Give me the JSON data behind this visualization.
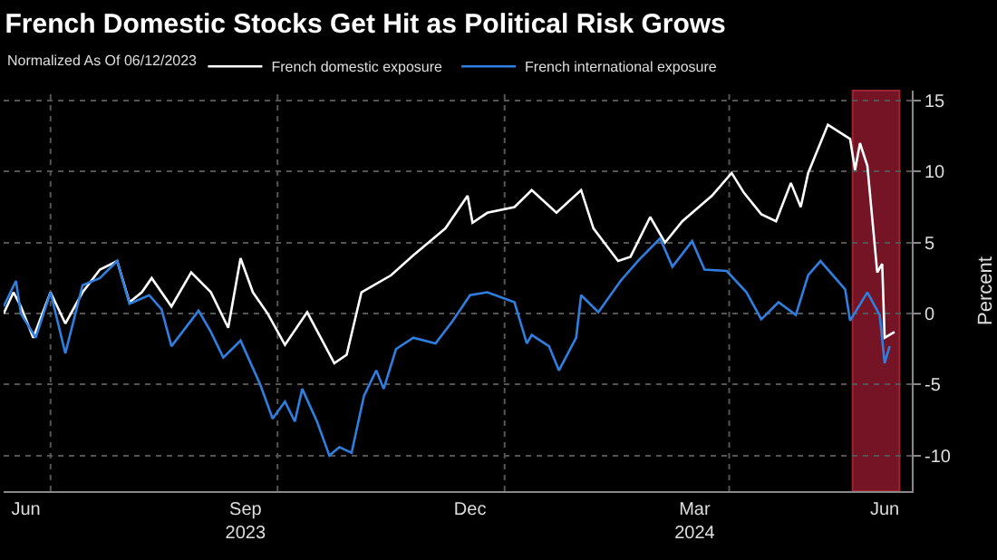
{
  "chart_data": {
    "type": "line",
    "title": "French Domestic Stocks Get Hit as Political Risk Grows",
    "subtitle": "Normalized As Of 06/12/2023",
    "ylabel": "Percent",
    "legend": "top left",
    "grid": true,
    "xlim": [
      "2023-06-12",
      "2024-06-14"
    ],
    "xticks": [
      {
        "value": "2023-06-21",
        "label": "Jun"
      },
      {
        "value": "2023-07-01",
        "label": null
      },
      {
        "value": "2023-09-18",
        "label": "Sep\n2023"
      },
      {
        "value": "2023-10-01",
        "label": null
      },
      {
        "value": "2023-12-18",
        "label": "Dec"
      },
      {
        "value": "2024-01-01",
        "label": null
      },
      {
        "value": "2024-03-18",
        "label": "Mar\n2024"
      },
      {
        "value": "2024-04-01",
        "label": null
      },
      {
        "value": "2024-06-03",
        "label": "Jun"
      }
    ],
    "ylim": [
      -12.5,
      15.7
    ],
    "yticks": [
      -10,
      -5,
      0,
      5,
      10,
      15
    ],
    "bands": [
      {
        "axis": "x",
        "from": "2024-05-21",
        "to": "2024-06-09",
        "color": "#9b1b30"
      }
    ],
    "series": [
      {
        "name": "French domestic exposure",
        "color": "#ffffff",
        "x": [
          "2023-06-12",
          "2023-06-16",
          "2023-06-19",
          "2023-06-24",
          "2023-07-01",
          "2023-07-07",
          "2023-07-14",
          "2023-07-21",
          "2023-07-28",
          "2023-08-02",
          "2023-08-07",
          "2023-08-11",
          "2023-08-19",
          "2023-08-27",
          "2023-09-04",
          "2023-09-11",
          "2023-09-16",
          "2023-09-21",
          "2023-09-27",
          "2023-10-04",
          "2023-10-13",
          "2023-10-24",
          "2023-10-29",
          "2023-11-04",
          "2023-11-16",
          "2023-11-25",
          "2023-12-08",
          "2023-12-17",
          "2023-12-19",
          "2023-12-25",
          "2024-01-05",
          "2024-01-12",
          "2024-01-22",
          "2024-02-01",
          "2024-02-06",
          "2024-02-16",
          "2024-02-21",
          "2024-02-29",
          "2024-03-06",
          "2024-03-13",
          "2024-03-25",
          "2024-04-02",
          "2024-04-07",
          "2024-04-14",
          "2024-04-20",
          "2024-04-26",
          "2024-04-30",
          "2024-05-03",
          "2024-05-11",
          "2024-05-20",
          "2024-05-22",
          "2024-05-24",
          "2024-05-27",
          "2024-05-31",
          "2024-06-02",
          "2024-06-03",
          "2024-06-07"
        ],
        "values": [
          0,
          1.5,
          0.5,
          -1.7,
          1.5,
          -0.7,
          1.5,
          3.1,
          3.7,
          0.8,
          1.5,
          2.5,
          0.5,
          2.9,
          1.5,
          -1,
          3.9,
          1.5,
          0,
          -2.2,
          0.1,
          -3.5,
          -2.9,
          1.5,
          2.7,
          4.1,
          6.0,
          8.3,
          6.4,
          7.1,
          7.5,
          8.7,
          7.1,
          8.7,
          6,
          3.7,
          4,
          6.8,
          5,
          6.5,
          8.3,
          9.9,
          8.5,
          7,
          6.5,
          9.2,
          7.5,
          9.9,
          13.3,
          12.3,
          10.1,
          12,
          10.4,
          2.9,
          3.5,
          -1.7,
          -1.3
        ]
      },
      {
        "name": "French international exposure",
        "color": "#2f7fe0",
        "x": [
          "2023-06-12",
          "2023-06-17",
          "2023-06-19",
          "2023-06-25",
          "2023-07-01",
          "2023-07-07",
          "2023-07-14",
          "2023-07-21",
          "2023-07-28",
          "2023-08-02",
          "2023-08-10",
          "2023-08-15",
          "2023-08-19",
          "2023-08-30",
          "2023-09-04",
          "2023-09-09",
          "2023-09-16",
          "2023-09-24",
          "2023-09-29",
          "2023-10-04",
          "2023-10-08",
          "2023-10-11",
          "2023-10-17",
          "2023-10-22",
          "2023-10-26",
          "2023-10-31",
          "2023-11-05",
          "2023-11-10",
          "2023-11-13",
          "2023-11-18",
          "2023-11-25",
          "2023-12-04",
          "2023-12-11",
          "2023-12-18",
          "2023-12-25",
          "2024-01-05",
          "2024-01-10",
          "2024-01-12",
          "2024-01-19",
          "2024-01-23",
          "2024-01-30",
          "2024-02-01",
          "2024-02-08",
          "2024-02-17",
          "2024-02-24",
          "2024-03-04",
          "2024-03-09",
          "2024-03-17",
          "2024-03-22",
          "2024-03-31",
          "2024-04-08",
          "2024-04-14",
          "2024-04-21",
          "2024-04-28",
          "2024-05-03",
          "2024-05-08",
          "2024-05-14",
          "2024-05-18",
          "2024-05-20",
          "2024-05-27",
          "2024-06-01",
          "2024-06-03",
          "2024-06-05"
        ],
        "values": [
          0.5,
          2.3,
          0,
          -1.7,
          1.5,
          -2.8,
          2,
          2.5,
          3.7,
          0.7,
          1.3,
          0.3,
          -2.3,
          0.2,
          -1.3,
          -3.1,
          -1.9,
          -5,
          -7.4,
          -6.2,
          -7.6,
          -5.3,
          -7.6,
          -10,
          -9.4,
          -9.8,
          -5.8,
          -4,
          -5.3,
          -2.5,
          -1.7,
          -2.1,
          -0.5,
          1.3,
          1.5,
          0.8,
          -2.1,
          -1.5,
          -2.3,
          -4,
          -1.7,
          1.3,
          0.1,
          2.3,
          3.7,
          5.3,
          3.3,
          5.1,
          3.1,
          3,
          1.5,
          -0.4,
          0.8,
          -0.1,
          2.7,
          3.7,
          2.5,
          1.7,
          -0.5,
          1.5,
          -0.1,
          -3.5,
          -2.3
        ]
      }
    ]
  }
}
